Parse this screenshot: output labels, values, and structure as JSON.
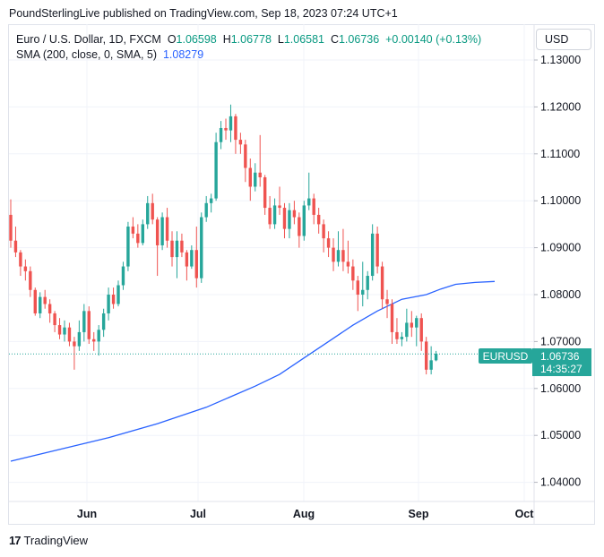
{
  "header": {
    "attribution": "PoundSterlingLive published on TradingView.com, Sep 18, 2023 07:24 UTC+1"
  },
  "legend": {
    "symbol": "Euro / U.S. Dollar, 1D, FXCM",
    "open_label": "O",
    "open": "1.06598",
    "high_label": "H",
    "high": "1.06778",
    "low_label": "L",
    "low": "1.06581",
    "close_label": "C",
    "close": "1.06736",
    "change": "+0.00140 (+0.13%)",
    "sma_label": "SMA (200, close, 0, SMA, 5)",
    "sma_value": "1.08279"
  },
  "currency_button": "USD",
  "price_tag": {
    "symbol": "EURUSD",
    "price": "1.06736",
    "countdown": "14:35:27"
  },
  "footer": {
    "logo": "17",
    "brand": "TradingView"
  },
  "colors": {
    "up": "#26a69a",
    "down": "#ef5350",
    "sma": "#2962ff",
    "grid": "#f0f3fa"
  },
  "chart_data": {
    "type": "candlestick",
    "y_ticks": [
      "1.13000",
      "1.12000",
      "1.11000",
      "1.10000",
      "1.09000",
      "1.08000",
      "1.07000",
      "1.06000",
      "1.05000",
      "1.04000"
    ],
    "x_ticks": [
      "Jun",
      "Jul",
      "Aug",
      "Sep",
      "Oct"
    ],
    "ylim": [
      1.036,
      1.1325
    ],
    "last_price": 1.06736,
    "candles": [
      [
        1.097,
        1.1003,
        1.09,
        1.0915
      ],
      [
        1.0915,
        1.0945,
        1.088,
        1.089
      ],
      [
        1.089,
        1.0895,
        1.084,
        1.086
      ],
      [
        1.086,
        1.0875,
        1.083,
        1.085
      ],
      [
        1.085,
        1.086,
        1.0795,
        1.081
      ],
      [
        1.081,
        1.0815,
        1.0755,
        1.076
      ],
      [
        1.076,
        1.0805,
        1.075,
        1.0795
      ],
      [
        1.0795,
        1.081,
        1.077,
        1.078
      ],
      [
        1.078,
        1.079,
        1.074,
        1.076
      ],
      [
        1.076,
        1.0765,
        1.072,
        1.0735
      ],
      [
        1.0735,
        1.075,
        1.0705,
        1.0715
      ],
      [
        1.0715,
        1.0745,
        1.07,
        1.073
      ],
      [
        1.073,
        1.074,
        1.069,
        1.07
      ],
      [
        1.07,
        1.071,
        1.064,
        1.069
      ],
      [
        1.069,
        1.0745,
        1.068,
        1.072
      ],
      [
        1.072,
        1.078,
        1.07,
        1.0765
      ],
      [
        1.0765,
        1.0775,
        1.0695,
        1.0705
      ],
      [
        1.0705,
        1.072,
        1.068,
        1.07
      ],
      [
        1.07,
        1.0735,
        1.067,
        1.0725
      ],
      [
        1.0725,
        1.077,
        1.071,
        1.076
      ],
      [
        1.076,
        1.0815,
        1.0745,
        1.08
      ],
      [
        1.08,
        1.0815,
        1.077,
        1.078
      ],
      [
        1.078,
        1.083,
        1.0775,
        1.082
      ],
      [
        1.082,
        1.087,
        1.081,
        1.086
      ],
      [
        1.086,
        1.0955,
        1.085,
        1.0945
      ],
      [
        1.0945,
        1.0965,
        1.092,
        1.093
      ],
      [
        1.093,
        1.095,
        1.09,
        1.091
      ],
      [
        1.091,
        1.096,
        1.0905,
        1.095
      ],
      [
        1.095,
        1.101,
        1.094,
        1.0995
      ],
      [
        1.0995,
        1.1015,
        1.095,
        1.096
      ],
      [
        1.096,
        1.0965,
        1.084,
        1.0905
      ],
      [
        1.0905,
        1.0975,
        1.0895,
        1.0965
      ],
      [
        1.0965,
        1.0985,
        1.09,
        1.0915
      ],
      [
        1.0915,
        1.0935,
        1.086,
        1.088
      ],
      [
        1.088,
        1.0935,
        1.0835,
        1.0915
      ],
      [
        1.0915,
        1.093,
        1.088,
        1.089
      ],
      [
        1.089,
        1.0895,
        1.083,
        1.086
      ],
      [
        1.086,
        1.0905,
        1.0855,
        1.0895
      ],
      [
        1.0895,
        1.0945,
        1.0815,
        1.0835
      ],
      [
        1.0835,
        1.0975,
        1.0825,
        1.0965
      ],
      [
        1.0965,
        1.101,
        1.0955,
        1.0995
      ],
      [
        1.0995,
        1.1015,
        1.0975,
        1.1005
      ],
      [
        1.1005,
        1.1145,
        1.1,
        1.1125
      ],
      [
        1.1125,
        1.117,
        1.111,
        1.1155
      ],
      [
        1.1155,
        1.1175,
        1.113,
        1.115
      ],
      [
        1.115,
        1.1205,
        1.1125,
        1.118
      ],
      [
        1.118,
        1.1185,
        1.11,
        1.113
      ],
      [
        1.113,
        1.1145,
        1.11,
        1.112
      ],
      [
        1.112,
        1.113,
        1.104,
        1.107
      ],
      [
        1.107,
        1.109,
        1.1,
        1.103
      ],
      [
        1.103,
        1.108,
        1.102,
        1.106
      ],
      [
        1.106,
        1.114,
        1.103,
        1.105
      ],
      [
        1.105,
        1.1055,
        1.097,
        1.0985
      ],
      [
        1.0985,
        1.101,
        1.094,
        1.095
      ],
      [
        1.095,
        1.1005,
        1.094,
        1.099
      ],
      [
        1.099,
        1.103,
        1.097,
        1.0985
      ],
      [
        1.0985,
        1.0995,
        1.092,
        1.094
      ],
      [
        1.094,
        1.0995,
        1.092,
        1.098
      ],
      [
        1.098,
        1.1,
        1.095,
        1.0965
      ],
      [
        1.0965,
        1.0975,
        1.09,
        1.0925
      ],
      [
        1.0925,
        1.1,
        1.0915,
        1.099
      ],
      [
        1.099,
        1.106,
        1.098,
        1.1005
      ],
      [
        1.1005,
        1.1015,
        1.095,
        1.097
      ],
      [
        1.097,
        1.0985,
        1.093,
        1.095
      ],
      [
        1.095,
        1.096,
        1.089,
        1.092
      ],
      [
        1.092,
        1.0935,
        1.088,
        1.09
      ],
      [
        1.09,
        1.092,
        1.085,
        1.087
      ],
      [
        1.087,
        1.0935,
        1.086,
        1.0895
      ],
      [
        1.0895,
        1.094,
        1.085,
        1.087
      ],
      [
        1.087,
        1.0915,
        1.0845,
        1.086
      ],
      [
        1.086,
        1.0875,
        1.081,
        1.083
      ],
      [
        1.083,
        1.084,
        1.0765,
        1.08
      ],
      [
        1.08,
        1.087,
        1.0775,
        1.081
      ],
      [
        1.081,
        1.085,
        1.079,
        1.084
      ],
      [
        1.084,
        1.095,
        1.083,
        1.093
      ],
      [
        1.093,
        1.0945,
        1.0845,
        1.086
      ],
      [
        1.086,
        1.087,
        1.077,
        1.079
      ],
      [
        1.079,
        1.081,
        1.075,
        1.078
      ],
      [
        1.078,
        1.079,
        1.0695,
        1.072
      ],
      [
        1.072,
        1.075,
        1.0695,
        1.0705
      ],
      [
        1.0705,
        1.072,
        1.069,
        1.071
      ],
      [
        1.071,
        1.077,
        1.07,
        1.074
      ],
      [
        1.074,
        1.0765,
        1.071,
        1.073
      ],
      [
        1.073,
        1.0755,
        1.069,
        1.075
      ],
      [
        1.075,
        1.076,
        1.068,
        1.07
      ],
      [
        1.07,
        1.071,
        1.063,
        1.064
      ],
      [
        1.064,
        1.069,
        1.063,
        1.066
      ],
      [
        1.066,
        1.068,
        1.0658,
        1.0674
      ]
    ],
    "sma_points": [
      [
        0,
        1.0445
      ],
      [
        10,
        1.047
      ],
      [
        20,
        1.0495
      ],
      [
        30,
        1.0525
      ],
      [
        40,
        1.056
      ],
      [
        50,
        1.0605
      ],
      [
        55,
        1.063
      ],
      [
        60,
        1.0665
      ],
      [
        65,
        1.07
      ],
      [
        70,
        1.0735
      ],
      [
        75,
        1.0765
      ],
      [
        80,
        1.079
      ],
      [
        85,
        1.08
      ],
      [
        88,
        1.0812
      ],
      [
        91,
        1.0822
      ],
      [
        95,
        1.0826
      ],
      [
        99,
        1.0828
      ]
    ]
  }
}
